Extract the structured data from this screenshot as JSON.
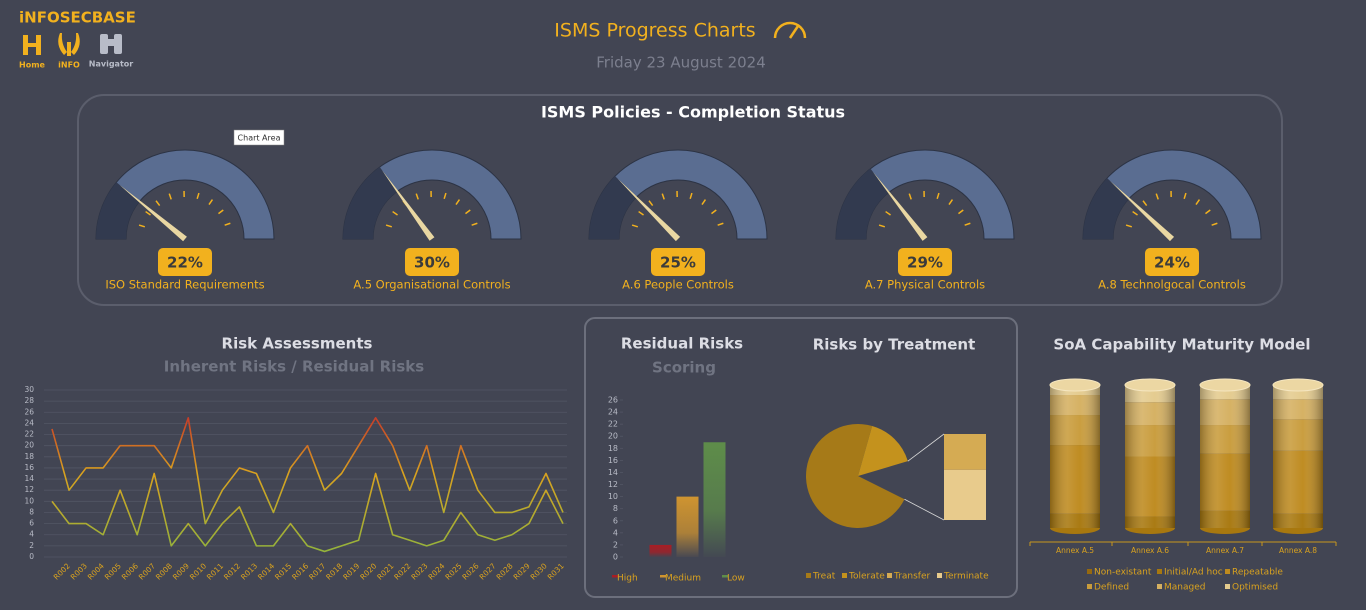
{
  "header": {
    "brand": "iNFOSECBASE",
    "nav": [
      "Home",
      "iNFO",
      "Navigator"
    ],
    "title": "ISMS Progress Charts",
    "date": "Friday 23 August 2024",
    "tooltip": "Chart Area"
  },
  "chart_data": [
    {
      "type": "gauge",
      "title": "ISMS Policies - Completion Status",
      "categories": [
        "ISO Standard Requirements",
        "A.5 Organisational Controls",
        "A.6 People Controls",
        "A.7 Physical Controls",
        "A.8 Technolgocal Controls"
      ],
      "values": [
        22,
        30,
        25,
        29,
        24
      ],
      "value_labels": [
        "22%",
        "30%",
        "25%",
        "29%",
        "24%"
      ],
      "ylim": [
        0,
        100
      ],
      "colors": [
        "#323a4f",
        "#5a6d91",
        "#e9d7a2",
        "#f2b11e"
      ]
    },
    {
      "type": "line",
      "title": "Risk Assessments",
      "subtitle": "Inherent Risks / Residual Risks",
      "categories": [
        null,
        "R002",
        "R003",
        "R004",
        "R005",
        "R006",
        "R007",
        "R008",
        "R009",
        "R010",
        "R011",
        "R012",
        "R013",
        "R014",
        "R015",
        "R016",
        "R017",
        "R018",
        "R019",
        "R020",
        "R021",
        "R022",
        "R023",
        "R024",
        "R025",
        "R026",
        "R027",
        "R028",
        "R029",
        "R030",
        "R031"
      ],
      "series": [
        {
          "values": [
            23,
            12,
            16,
            16,
            20,
            20,
            20,
            16,
            25,
            6,
            12,
            16,
            15,
            8,
            16,
            20,
            12,
            15,
            20,
            25,
            20,
            12,
            20,
            8,
            20,
            12,
            8,
            8,
            9,
            15,
            8
          ]
        },
        {
          "values": [
            10,
            6,
            6,
            4,
            12,
            4,
            15,
            2,
            6,
            2,
            6,
            9,
            2,
            2,
            6,
            2,
            1,
            2,
            3,
            15,
            4,
            3,
            2,
            3,
            8,
            4,
            3,
            4,
            6,
            12,
            6
          ]
        }
      ],
      "line_gradient": [
        "#c4262a",
        "#d9a21f",
        "#8fb43e"
      ],
      "ylim": [
        0,
        30
      ],
      "yticks": [
        0,
        2,
        4,
        6,
        8,
        10,
        12,
        14,
        16,
        18,
        20,
        22,
        24,
        26,
        28,
        30
      ],
      "grid": true
    },
    {
      "type": "bar",
      "title": "Residual Risks",
      "subtitle": "Scoring",
      "categories": [
        "High",
        "Medium",
        "Low"
      ],
      "values": [
        2,
        10,
        19
      ],
      "colors": [
        "#a81d24",
        "#cf9430",
        "#5e8d4a"
      ],
      "ylim": [
        0,
        26
      ],
      "yticks": [
        0,
        2,
        4,
        6,
        8,
        10,
        12,
        14,
        16,
        18,
        20,
        22,
        24,
        26
      ]
    },
    {
      "type": "pie",
      "title": "Risks by Treatment",
      "categories": [
        "Treat",
        "Tolerate",
        "Transfer",
        "Terminate"
      ],
      "values": [
        72,
        16,
        5,
        7
      ],
      "colors": [
        "#a67a18",
        "#c4921d",
        "#d5ab53",
        "#e8cb8c"
      ]
    },
    {
      "type": "bar",
      "stacked": true,
      "title": "SoA Capability Maturity Model",
      "categories": [
        "Annex A.5",
        "Annex A.6",
        "Annex A.7",
        "Annex A.8"
      ],
      "series": [
        {
          "name": "Non-existant",
          "color": "#96690f",
          "values": [
            0,
            0,
            0,
            0
          ]
        },
        {
          "name": "Initial/Ad hoc",
          "color": "#a8780f",
          "values": [
            10,
            8,
            12,
            10
          ]
        },
        {
          "name": "Repeatable",
          "color": "#be8a1e",
          "values": [
            48,
            42,
            40,
            44
          ]
        },
        {
          "name": "Defined",
          "color": "#c99c3c",
          "values": [
            21,
            22,
            20,
            22
          ]
        },
        {
          "name": "Managed",
          "color": "#d5b061",
          "values": [
            14,
            16,
            18,
            14
          ]
        },
        {
          "name": "Optimised",
          "color": "#e4cb8e",
          "values": [
            7,
            12,
            10,
            10
          ]
        }
      ],
      "ylim": [
        0,
        100
      ]
    }
  ]
}
